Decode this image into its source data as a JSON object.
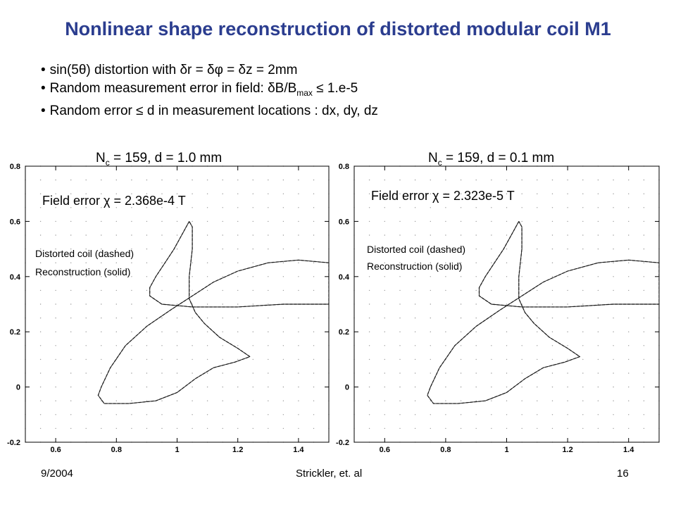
{
  "slide": {
    "title": "Nonlinear shape reconstruction of distorted modular coil M1",
    "bullets": [
      "sin(5θ) distortion with δr = δφ = δz = 2mm",
      "Random error ≤ d in measurement locations : dx, dy, dz"
    ],
    "bullet2": {
      "prefix": "Random measurement error in field: δB/B",
      "sub": "max",
      "suffix": " ≤ 1.e-5"
    },
    "bullet_glyph": "•",
    "footer": {
      "date": "9/2004",
      "author": "Strickler, et. al",
      "page": "16"
    }
  },
  "chart_data": [
    {
      "type": "line",
      "title_prefix": "N",
      "title_sub": "c",
      "title_suffix": " = 159, d = 1.0 mm",
      "annotation": "Field error χ = 2.368e-4 T",
      "legend": [
        "Distorted coil (dashed)",
        "Reconstruction (solid)"
      ],
      "xlim": [
        0.5,
        1.5
      ],
      "ylim": [
        -0.2,
        0.8
      ],
      "xticks": [
        "0.6",
        "0.8",
        "1",
        "1.2",
        "1.4"
      ],
      "yticks": [
        "0.8",
        "0.6",
        "0.4",
        "0.2",
        "0",
        "-0.2"
      ],
      "grid": "dotted",
      "series": [
        {
          "style": "dashed",
          "points": [
            [
              1.04,
              0.6
            ],
            [
              1.02,
              0.56
            ],
            [
              0.99,
              0.5
            ],
            [
              0.96,
              0.45
            ],
            [
              0.93,
              0.4
            ],
            [
              0.91,
              0.36
            ],
            [
              0.91,
              0.33
            ],
            [
              0.95,
              0.3
            ],
            [
              1.05,
              0.29
            ],
            [
              1.2,
              0.29
            ],
            [
              1.35,
              0.3
            ],
            [
              1.5,
              0.3
            ],
            [
              1.5,
              0.45
            ],
            [
              1.4,
              0.46
            ],
            [
              1.3,
              0.45
            ],
            [
              1.2,
              0.42
            ],
            [
              1.12,
              0.38
            ],
            [
              1.05,
              0.33
            ],
            [
              0.98,
              0.28
            ],
            [
              0.9,
              0.22
            ],
            [
              0.83,
              0.15
            ],
            [
              0.78,
              0.07
            ],
            [
              0.75,
              0.0
            ],
            [
              0.74,
              -0.03
            ],
            [
              0.76,
              -0.06
            ],
            [
              0.84,
              -0.06
            ],
            [
              0.93,
              -0.05
            ],
            [
              1.0,
              -0.02
            ],
            [
              1.06,
              0.03
            ],
            [
              1.12,
              0.07
            ],
            [
              1.19,
              0.09
            ],
            [
              1.24,
              0.11
            ],
            [
              1.2,
              0.14
            ],
            [
              1.14,
              0.18
            ],
            [
              1.09,
              0.23
            ],
            [
              1.06,
              0.27
            ],
            [
              1.04,
              0.32
            ],
            [
              1.04,
              0.4
            ],
            [
              1.05,
              0.5
            ],
            [
              1.05,
              0.58
            ],
            [
              1.04,
              0.6
            ]
          ]
        },
        {
          "style": "solid",
          "points": [
            [
              1.04,
              0.6
            ],
            [
              1.02,
              0.56
            ],
            [
              0.99,
              0.5
            ],
            [
              0.96,
              0.45
            ],
            [
              0.93,
              0.4
            ],
            [
              0.91,
              0.36
            ],
            [
              0.91,
              0.33
            ],
            [
              0.95,
              0.3
            ],
            [
              1.05,
              0.29
            ],
            [
              1.2,
              0.29
            ],
            [
              1.35,
              0.3
            ],
            [
              1.5,
              0.3
            ],
            [
              1.5,
              0.45
            ],
            [
              1.4,
              0.46
            ],
            [
              1.3,
              0.45
            ],
            [
              1.2,
              0.42
            ],
            [
              1.12,
              0.38
            ],
            [
              1.05,
              0.33
            ],
            [
              0.98,
              0.28
            ],
            [
              0.9,
              0.22
            ],
            [
              0.83,
              0.15
            ],
            [
              0.78,
              0.07
            ],
            [
              0.75,
              0.0
            ],
            [
              0.74,
              -0.03
            ],
            [
              0.76,
              -0.06
            ],
            [
              0.84,
              -0.06
            ],
            [
              0.93,
              -0.05
            ],
            [
              1.0,
              -0.02
            ],
            [
              1.06,
              0.03
            ],
            [
              1.12,
              0.07
            ],
            [
              1.19,
              0.09
            ],
            [
              1.24,
              0.11
            ],
            [
              1.2,
              0.14
            ],
            [
              1.14,
              0.18
            ],
            [
              1.09,
              0.23
            ],
            [
              1.06,
              0.27
            ],
            [
              1.04,
              0.32
            ],
            [
              1.04,
              0.4
            ],
            [
              1.05,
              0.5
            ],
            [
              1.05,
              0.58
            ],
            [
              1.04,
              0.6
            ]
          ]
        }
      ]
    },
    {
      "type": "line",
      "title_prefix": "N",
      "title_sub": "c",
      "title_suffix": " = 159, d = 0.1 mm",
      "annotation": "Field error χ = 2.323e-5 T",
      "legend": [
        "Distorted coil (dashed)",
        "Reconstruction (solid)"
      ],
      "xlim": [
        0.5,
        1.5
      ],
      "ylim": [
        -0.2,
        0.8
      ],
      "xticks": [
        "0.6",
        "0.8",
        "1",
        "1.2",
        "1.4"
      ],
      "yticks": [
        "0.8",
        "0.6",
        "0.4",
        "0.2",
        "0",
        "-0.2"
      ],
      "grid": "dotted",
      "series": [
        {
          "style": "dashed",
          "points": [
            [
              1.04,
              0.6
            ],
            [
              1.02,
              0.56
            ],
            [
              0.99,
              0.5
            ],
            [
              0.96,
              0.45
            ],
            [
              0.93,
              0.4
            ],
            [
              0.91,
              0.36
            ],
            [
              0.91,
              0.33
            ],
            [
              0.95,
              0.3
            ],
            [
              1.05,
              0.29
            ],
            [
              1.2,
              0.29
            ],
            [
              1.35,
              0.3
            ],
            [
              1.5,
              0.3
            ],
            [
              1.5,
              0.45
            ],
            [
              1.4,
              0.46
            ],
            [
              1.3,
              0.45
            ],
            [
              1.2,
              0.42
            ],
            [
              1.12,
              0.38
            ],
            [
              1.05,
              0.33
            ],
            [
              0.98,
              0.28
            ],
            [
              0.9,
              0.22
            ],
            [
              0.83,
              0.15
            ],
            [
              0.78,
              0.07
            ],
            [
              0.75,
              0.0
            ],
            [
              0.74,
              -0.03
            ],
            [
              0.76,
              -0.06
            ],
            [
              0.84,
              -0.06
            ],
            [
              0.93,
              -0.05
            ],
            [
              1.0,
              -0.02
            ],
            [
              1.06,
              0.03
            ],
            [
              1.12,
              0.07
            ],
            [
              1.19,
              0.09
            ],
            [
              1.24,
              0.11
            ],
            [
              1.2,
              0.14
            ],
            [
              1.14,
              0.18
            ],
            [
              1.09,
              0.23
            ],
            [
              1.06,
              0.27
            ],
            [
              1.04,
              0.32
            ],
            [
              1.04,
              0.4
            ],
            [
              1.05,
              0.5
            ],
            [
              1.05,
              0.58
            ],
            [
              1.04,
              0.6
            ]
          ]
        },
        {
          "style": "solid",
          "points": [
            [
              1.04,
              0.6
            ],
            [
              1.02,
              0.56
            ],
            [
              0.99,
              0.5
            ],
            [
              0.96,
              0.45
            ],
            [
              0.93,
              0.4
            ],
            [
              0.91,
              0.36
            ],
            [
              0.91,
              0.33
            ],
            [
              0.95,
              0.3
            ],
            [
              1.05,
              0.29
            ],
            [
              1.2,
              0.29
            ],
            [
              1.35,
              0.3
            ],
            [
              1.5,
              0.3
            ],
            [
              1.5,
              0.45
            ],
            [
              1.4,
              0.46
            ],
            [
              1.3,
              0.45
            ],
            [
              1.2,
              0.42
            ],
            [
              1.12,
              0.38
            ],
            [
              1.05,
              0.33
            ],
            [
              0.98,
              0.28
            ],
            [
              0.9,
              0.22
            ],
            [
              0.83,
              0.15
            ],
            [
              0.78,
              0.07
            ],
            [
              0.75,
              0.0
            ],
            [
              0.74,
              -0.03
            ],
            [
              0.76,
              -0.06
            ],
            [
              0.84,
              -0.06
            ],
            [
              0.93,
              -0.05
            ],
            [
              1.0,
              -0.02
            ],
            [
              1.06,
              0.03
            ],
            [
              1.12,
              0.07
            ],
            [
              1.19,
              0.09
            ],
            [
              1.24,
              0.11
            ],
            [
              1.2,
              0.14
            ],
            [
              1.14,
              0.18
            ],
            [
              1.09,
              0.23
            ],
            [
              1.06,
              0.27
            ],
            [
              1.04,
              0.32
            ],
            [
              1.04,
              0.4
            ],
            [
              1.05,
              0.5
            ],
            [
              1.05,
              0.58
            ],
            [
              1.04,
              0.6
            ]
          ]
        }
      ]
    }
  ],
  "colors": {
    "title": "#2b3d8f",
    "text": "#000000",
    "curve": "#111111",
    "axes": "#000000",
    "grid": "#9a9a9a"
  }
}
